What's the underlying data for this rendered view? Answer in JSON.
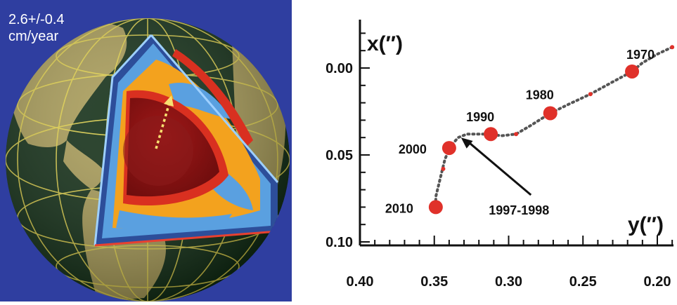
{
  "globe": {
    "rate_value": "2.6+/-0.4",
    "rate_unit": "cm/year",
    "colors": {
      "background": "#2f3ea0",
      "ocean": "#0e2b12",
      "land": "#a89b55",
      "grid": "#e8d84a",
      "core": "#8b1212",
      "mantle_blue": "#5aa0e0",
      "mantle_orange": "#f3a21e"
    },
    "icons": [
      "dotted-arrow-icon"
    ]
  },
  "chart_data": {
    "type": "scatter",
    "xlabel": "y(″)",
    "ylabel": "x(″)",
    "xlim": [
      0.4,
      0.19
    ],
    "ylim": [
      0.1,
      -0.025
    ],
    "x_ticks": [
      0.4,
      0.35,
      0.3,
      0.25,
      0.2
    ],
    "x_tick_labels": [
      "0.40",
      "0.35",
      "0.30",
      "0.25",
      "0.20"
    ],
    "y_ticks": [
      0.0,
      0.05,
      0.1
    ],
    "y_tick_labels": [
      "0.00",
      "0.05",
      "0.10"
    ],
    "axis_reversed": {
      "x": true,
      "y": true
    },
    "markers": [
      {
        "label": "1970",
        "x": 0.217,
        "y": 0.002
      },
      {
        "label": "1980",
        "x": 0.272,
        "y": 0.026
      },
      {
        "label": "1990",
        "x": 0.312,
        "y": 0.038
      },
      {
        "label": "2000",
        "x": 0.34,
        "y": 0.046
      },
      {
        "label": "2010",
        "x": 0.349,
        "y": 0.08
      }
    ],
    "path": [
      [
        0.19,
        -0.012
      ],
      [
        0.2,
        -0.008
      ],
      [
        0.21,
        -0.003
      ],
      [
        0.217,
        0.002
      ],
      [
        0.23,
        0.008
      ],
      [
        0.245,
        0.015
      ],
      [
        0.26,
        0.021
      ],
      [
        0.272,
        0.026
      ],
      [
        0.285,
        0.033
      ],
      [
        0.295,
        0.038
      ],
      [
        0.305,
        0.039
      ],
      [
        0.312,
        0.038
      ],
      [
        0.32,
        0.038
      ],
      [
        0.328,
        0.038
      ],
      [
        0.334,
        0.04
      ],
      [
        0.34,
        0.046
      ],
      [
        0.343,
        0.053
      ],
      [
        0.345,
        0.06
      ],
      [
        0.347,
        0.067
      ],
      [
        0.349,
        0.074
      ],
      [
        0.349,
        0.08
      ]
    ],
    "red_dots": [
      [
        0.19,
        -0.012
      ],
      [
        0.245,
        0.015
      ],
      [
        0.295,
        0.038
      ],
      [
        0.344,
        0.058
      ]
    ],
    "annotation": {
      "text": "1997-1998",
      "arrow_from": [
        0.285,
        0.073
      ],
      "arrow_to": [
        0.332,
        0.04
      ]
    },
    "colors": {
      "marker": "#e0312a",
      "path": "#555555",
      "axis": "#111111"
    }
  }
}
